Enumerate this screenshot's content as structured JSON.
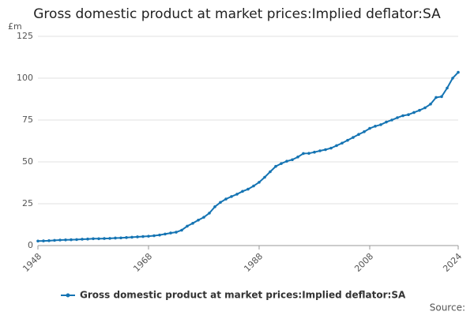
{
  "chart_data": {
    "type": "line",
    "title": "Gross domestic product at market prices:Implied deflator:SA",
    "y_unit": "£m",
    "source": "Source:",
    "x": [
      1948,
      1949,
      1950,
      1951,
      1952,
      1953,
      1954,
      1955,
      1956,
      1957,
      1958,
      1959,
      1960,
      1961,
      1962,
      1963,
      1964,
      1965,
      1966,
      1967,
      1968,
      1969,
      1970,
      1971,
      1972,
      1973,
      1974,
      1975,
      1976,
      1977,
      1978,
      1979,
      1980,
      1981,
      1982,
      1983,
      1984,
      1985,
      1986,
      1987,
      1988,
      1989,
      1990,
      1991,
      1992,
      1993,
      1994,
      1995,
      1996,
      1997,
      1998,
      1999,
      2000,
      2001,
      2002,
      2003,
      2004,
      2005,
      2006,
      2007,
      2008,
      2009,
      2010,
      2011,
      2012,
      2013,
      2014,
      2015,
      2016,
      2017,
      2018,
      2019,
      2020,
      2021,
      2022,
      2023,
      2024
    ],
    "series": [
      {
        "name": "Gross domestic product at market prices:Implied deflator:SA",
        "color": "#1574b3",
        "values": [
          2.7,
          2.8,
          2.9,
          3.1,
          3.3,
          3.4,
          3.5,
          3.6,
          3.8,
          3.9,
          4.1,
          4.1,
          4.2,
          4.3,
          4.5,
          4.6,
          4.8,
          5.0,
          5.2,
          5.4,
          5.6,
          5.9,
          6.3,
          6.9,
          7.5,
          8.0,
          9.2,
          11.6,
          13.3,
          15.2,
          16.9,
          19.4,
          23.2,
          25.8,
          27.8,
          29.3,
          30.7,
          32.4,
          33.7,
          35.6,
          37.8,
          40.8,
          44.1,
          47.3,
          49.0,
          50.4,
          51.3,
          52.9,
          55.0,
          55.1,
          55.8,
          56.6,
          57.3,
          58.2,
          59.7,
          61.2,
          62.9,
          64.6,
          66.4,
          68.0,
          70.0,
          71.3,
          72.2,
          73.8,
          75.0,
          76.4,
          77.6,
          78.2,
          79.5,
          80.8,
          82.3,
          84.5,
          88.5,
          89.0,
          94.1,
          100.0,
          103.5
        ]
      }
    ],
    "xlim": [
      1948,
      2024
    ],
    "xticks": [
      1948,
      1968,
      1988,
      2008,
      2024
    ],
    "ylim": [
      0,
      125
    ],
    "yticks": [
      0,
      25,
      50,
      75,
      100,
      125
    ],
    "grid": true,
    "legend": "bottom"
  }
}
